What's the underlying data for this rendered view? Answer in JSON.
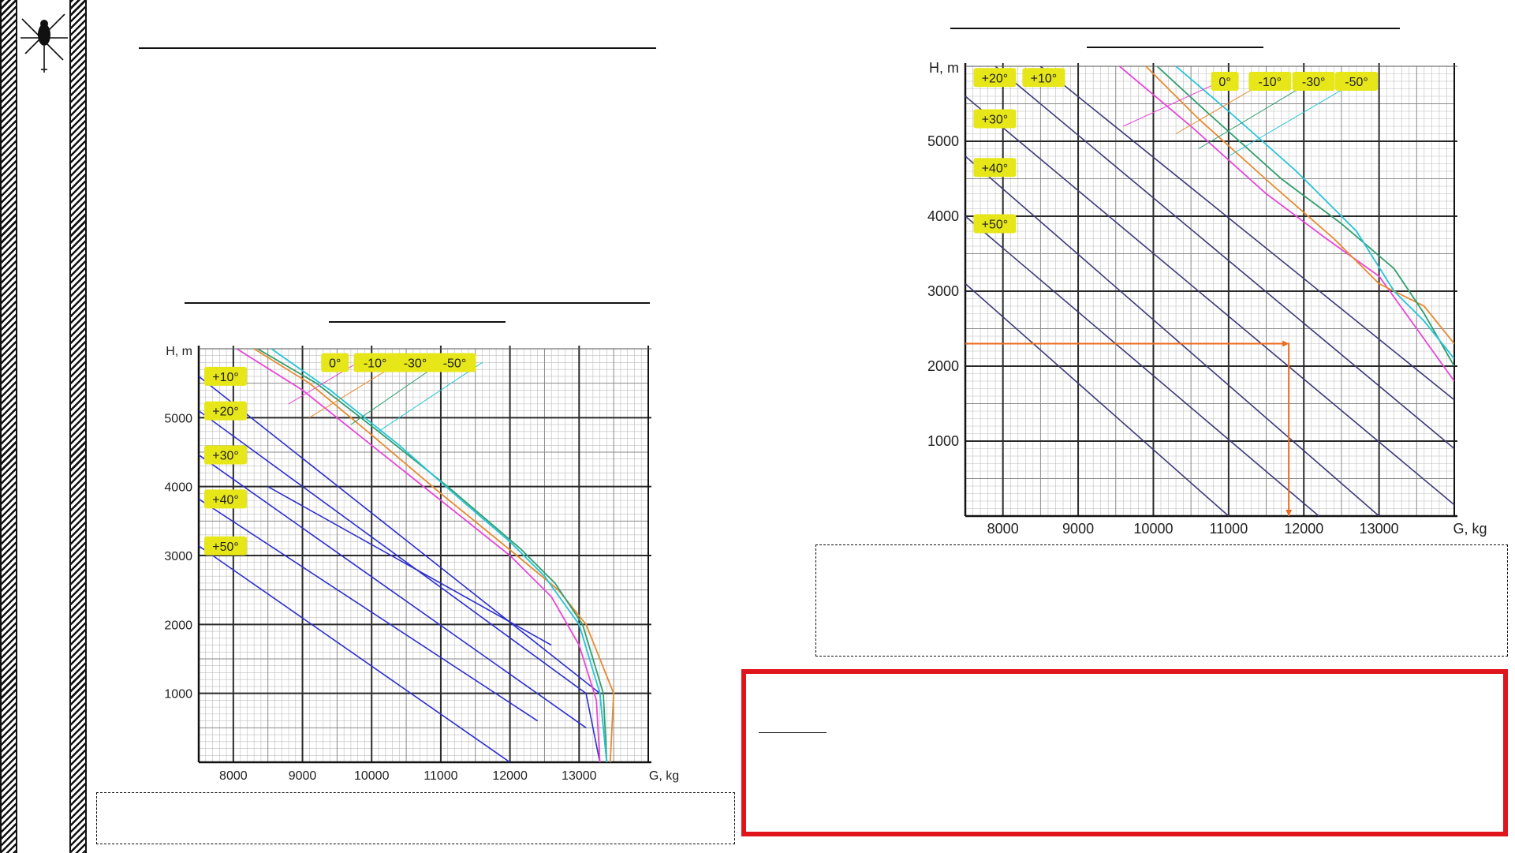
{
  "colors": {
    "isotherm_lines": "#2b2ecf",
    "grid_major": "#2a2a2a",
    "grid_minor": "#bdbdbd",
    "badge_bg": "#e6e619",
    "badge_text": "#111111",
    "series_0": "#e845d8",
    "series_m10": "#e88a2e",
    "series_m30": "#2f9e6e",
    "series_m50": "#25c4d8",
    "example_path": "#ee6a1c",
    "alert_border": "#e0141b"
  },
  "icons": {
    "logo": "helicopter-icon"
  },
  "chart_data": [
    {
      "type": "line",
      "title": "",
      "xlabel": "G, kg",
      "ylabel": "H, m",
      "xlim": [
        7500,
        14000
      ],
      "ylim": [
        0,
        6000
      ],
      "x_ticks": [
        8000,
        9000,
        10000,
        11000,
        12000,
        13000
      ],
      "y_ticks": [
        1000,
        2000,
        3000,
        4000,
        5000
      ],
      "x_tick_labels": [
        "8000",
        "9000",
        "10000",
        "11000",
        "12000",
        "13000"
      ],
      "y_tick_labels": [
        "1000",
        "2000",
        "3000",
        "4000",
        "5000"
      ],
      "grid": true,
      "isotherm_labels": [
        "+10°",
        "+20°",
        "+30°",
        "+40°",
        "+50°"
      ],
      "isotherm_label_heights": [
        5600,
        5100,
        4460,
        3820,
        3140
      ],
      "isotherms": [
        {
          "x": [
            7500,
            13300,
            13400
          ],
          "y": [
            5600,
            1000,
            0
          ]
        },
        {
          "x": [
            7500,
            13100,
            13300
          ],
          "y": [
            5100,
            1000,
            0
          ]
        },
        {
          "x": [
            7500,
            13100
          ],
          "y": [
            4460,
            500
          ]
        },
        {
          "x": [
            7500,
            12400
          ],
          "y": [
            3820,
            600
          ]
        },
        {
          "x": [
            7500,
            12000
          ],
          "y": [
            3140,
            0
          ]
        },
        {
          "x": [
            8500,
            12600
          ],
          "y": [
            4000,
            1700
          ]
        }
      ],
      "legend_labels": [
        "0°",
        "-10°",
        "-30°",
        "-50°"
      ],
      "legend_placement": "top",
      "series": [
        {
          "x": [
            8050,
            9000,
            10000,
            11000,
            12000,
            12600,
            13000,
            13250,
            13300
          ],
          "y": [
            6000,
            5400,
            4600,
            3800,
            3000,
            2400,
            1700,
            900,
            0
          ]
        },
        {
          "x": [
            8300,
            9100,
            10000,
            11000,
            12100,
            12700,
            13100,
            13500,
            13450
          ],
          "y": [
            6000,
            5500,
            4750,
            3900,
            3000,
            2500,
            2000,
            1000,
            0
          ]
        },
        {
          "x": [
            8350,
            9200,
            10100,
            11100,
            12150,
            12650,
            13050,
            13350,
            13400
          ],
          "y": [
            6000,
            5500,
            4800,
            4000,
            3100,
            2600,
            2000,
            1000,
            0
          ]
        },
        {
          "x": [
            8550,
            9400,
            10400,
            11300,
            12000,
            12500,
            13000,
            13300,
            13400
          ],
          "y": [
            6000,
            5400,
            4600,
            3800,
            3200,
            2700,
            2000,
            1000,
            0
          ]
        }
      ],
      "leaders": [
        {
          "from": [
            9800,
            5800
          ],
          "to": [
            8800,
            5200
          ]
        },
        {
          "from": [
            10400,
            5800
          ],
          "to": [
            9100,
            5000
          ]
        },
        {
          "from": [
            11000,
            5800
          ],
          "to": [
            9700,
            4900
          ]
        },
        {
          "from": [
            11600,
            5800
          ],
          "to": [
            10100,
            4800
          ]
        }
      ]
    },
    {
      "type": "line",
      "title": "",
      "xlabel": "G, kg",
      "ylabel": "H, m",
      "xlim": [
        7500,
        14000
      ],
      "ylim": [
        0,
        6000
      ],
      "x_ticks": [
        8000,
        9000,
        10000,
        11000,
        12000,
        13000
      ],
      "y_ticks": [
        1000,
        2000,
        3000,
        4000,
        5000
      ],
      "x_tick_labels": [
        "8000",
        "9000",
        "10000",
        "11000",
        "12000",
        "13000"
      ],
      "y_tick_labels": [
        "1000",
        "2000",
        "3000",
        "4000",
        "5000"
      ],
      "grid": true,
      "isotherm_labels": [
        "+20°",
        "+10°",
        "+30°",
        "+40°",
        "+50°"
      ],
      "isotherm_label_positions": [
        [
          7850,
          5850
        ],
        [
          8500,
          5850
        ],
        [
          7850,
          5300
        ],
        [
          7850,
          4650
        ],
        [
          7850,
          3900
        ]
      ],
      "isotherms": [
        {
          "x": [
            8500,
            14000
          ],
          "y": [
            6000,
            1550
          ]
        },
        {
          "x": [
            7900,
            14000
          ],
          "y": [
            6000,
            900
          ]
        },
        {
          "x": [
            7500,
            14000
          ],
          "y": [
            5600,
            150
          ]
        },
        {
          "x": [
            7500,
            13000
          ],
          "y": [
            4800,
            0
          ]
        },
        {
          "x": [
            7500,
            12200
          ],
          "y": [
            4000,
            0
          ]
        },
        {
          "x": [
            7500,
            11000
          ],
          "y": [
            3100,
            0
          ]
        }
      ],
      "legend_labels": [
        "0°",
        "-10°",
        "-30°",
        "-50°"
      ],
      "legend_placement": "top",
      "series": [
        {
          "x": [
            9550,
            10500,
            11500,
            12300,
            13000,
            13500,
            14000
          ],
          "y": [
            6000,
            5200,
            4300,
            3700,
            3200,
            2500,
            1800
          ]
        },
        {
          "x": [
            9900,
            10600,
            11600,
            12400,
            13000,
            13600,
            14000
          ],
          "y": [
            6000,
            5300,
            4400,
            3700,
            3100,
            2800,
            2300
          ]
        },
        {
          "x": [
            10050,
            10700,
            11700,
            12500,
            13200,
            13600,
            14000
          ],
          "y": [
            6000,
            5400,
            4500,
            3900,
            3300,
            2700,
            2000
          ]
        },
        {
          "x": [
            10300,
            11000,
            11900,
            12700,
            13200,
            13600,
            14000
          ],
          "y": [
            6000,
            5400,
            4600,
            3800,
            3000,
            2600,
            2100
          ]
        }
      ],
      "leaders": [
        {
          "from": [
            10900,
            5800
          ],
          "to": [
            9600,
            5200
          ]
        },
        {
          "from": [
            11500,
            5800
          ],
          "to": [
            10300,
            5100
          ]
        },
        {
          "from": [
            12100,
            5800
          ],
          "to": [
            10600,
            4900
          ]
        },
        {
          "from": [
            12700,
            5800
          ],
          "to": [
            11000,
            4800
          ]
        }
      ],
      "example_path": {
        "x": [
          7500,
          11800,
          11800
        ],
        "y": [
          2300,
          2300,
          0
        ]
      }
    }
  ]
}
